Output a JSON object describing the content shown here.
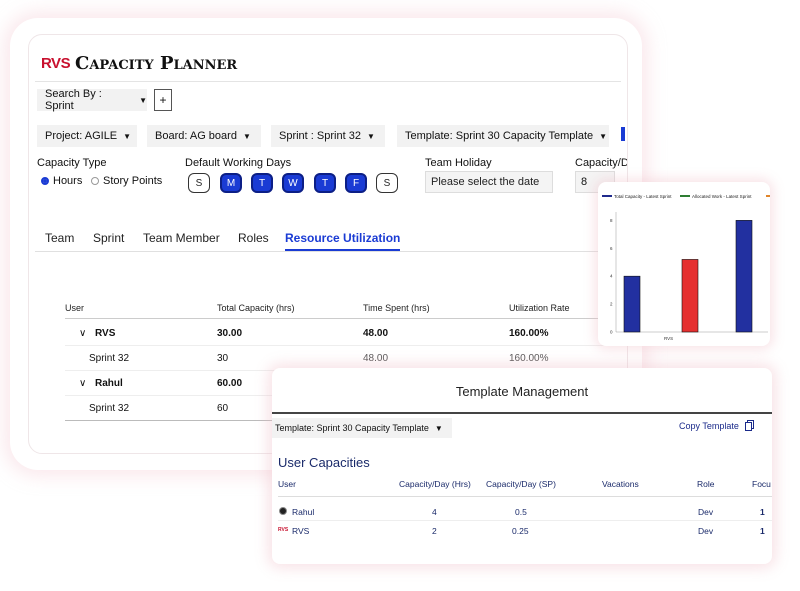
{
  "app": {
    "logo": "RVS",
    "title": "Capacity Planner"
  },
  "search_by": {
    "label": "Search By : Sprint",
    "add_label": "+"
  },
  "filters": {
    "project": "Project: AGILE",
    "board": "Board: AG board",
    "sprint": "Sprint : Sprint 32",
    "template": "Template: Sprint 30 Capacity Template"
  },
  "capacity_type": {
    "label": "Capacity Type",
    "options": [
      "Hours",
      "Story Points"
    ],
    "selected": "Hours"
  },
  "working_days": {
    "label": "Default Working Days",
    "days": [
      "S",
      "M",
      "T",
      "W",
      "T",
      "F",
      "S"
    ],
    "active": [
      false,
      true,
      true,
      true,
      true,
      true,
      false
    ]
  },
  "team_holiday": {
    "label": "Team Holiday",
    "placeholder": "Please select the date"
  },
  "capacity_day": {
    "label": "Capacity/Da",
    "value": "8"
  },
  "tabs": [
    "Team",
    "Sprint",
    "Team Member",
    "Roles",
    "Resource Utilization"
  ],
  "active_tab": "Resource Utilization",
  "table": {
    "headers": [
      "User",
      "Total Capacity (hrs)",
      "Time Spent (hrs)",
      "Utilization Rate"
    ],
    "rows": [
      {
        "user": "RVS",
        "capacity": "30.00",
        "spent": "48.00",
        "rate": "160.00%"
      },
      {
        "user": "Sprint 32",
        "capacity": "30",
        "spent": "48.00",
        "rate": "160.00%"
      },
      {
        "user": "Rahul",
        "capacity": "60.00",
        "spent": "",
        "rate": ""
      },
      {
        "user": "Sprint 32",
        "capacity": "60",
        "spent": "",
        "rate": ""
      }
    ]
  },
  "chart_data": {
    "type": "bar",
    "legend": [
      "Total Capacity - Latest Sprint",
      "Allocated Work - Latest Sprint"
    ],
    "legend_colors": [
      "#1f2a8c",
      "#2e7d32",
      "#e0852b"
    ],
    "categories": [
      "RVS"
    ],
    "y_ticks": [
      "0",
      "2",
      "4",
      "6",
      "8"
    ],
    "ylim": [
      0,
      8.6
    ],
    "series": [
      {
        "name": "Total Capacity - Latest Sprint",
        "color": "#2230a0",
        "values": [
          4
        ]
      },
      {
        "name": "Allocated Work - Latest Sprint",
        "color": "#e53030",
        "values": [
          5.2
        ]
      },
      {
        "name": "",
        "color": "#2230a0",
        "values": [
          8
        ]
      }
    ]
  },
  "template_mgmt": {
    "title": "Template Management",
    "template_select": "Template: Sprint 30 Capacity Template",
    "copy_label": "Copy Template",
    "section": "User Capacities",
    "headers": [
      "User",
      "Capacity/Day (Hrs)",
      "Capacity/Day (SP)",
      "Vacations",
      "Role",
      "Focu"
    ],
    "rows": [
      {
        "user": "Rahul",
        "hrs": "4",
        "sp": "0.5",
        "vac": "",
        "role": "Dev",
        "focus": "1"
      },
      {
        "user": "RVS",
        "hrs": "2",
        "sp": "0.25",
        "vac": "",
        "role": "Dev",
        "focus": "1"
      }
    ]
  },
  "colors": {
    "accent": "#1a3bd4",
    "brand": "#c8102e",
    "bar_blue": "#2230a0",
    "bar_red": "#e53030"
  }
}
